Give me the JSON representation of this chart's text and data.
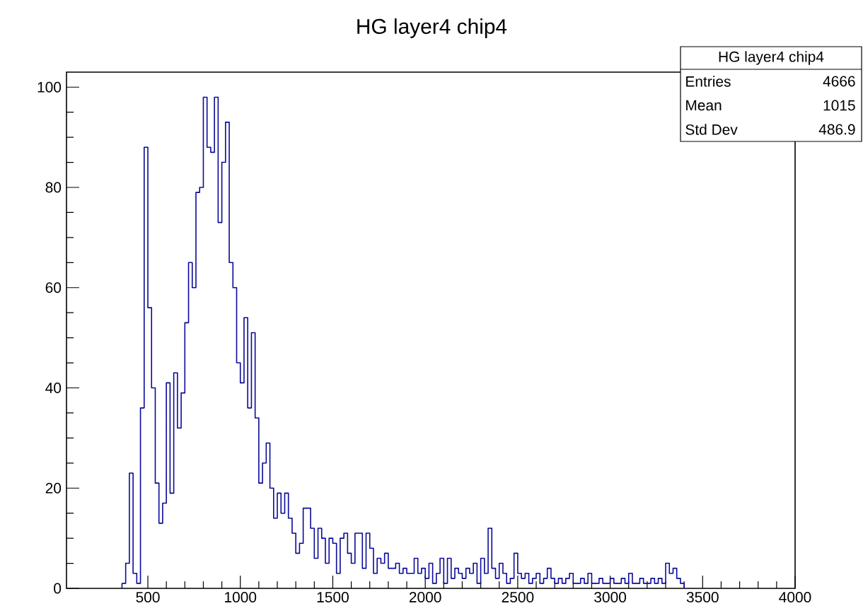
{
  "chart_data": {
    "type": "histogram",
    "title": "HG layer4 chip4",
    "bins": [
      360,
      380,
      400,
      420,
      440,
      460,
      480,
      500,
      520,
      540,
      560,
      580,
      600,
      620,
      640,
      660,
      680,
      700,
      720,
      740,
      760,
      780,
      800,
      820,
      840,
      860,
      880,
      900,
      920,
      940,
      960,
      980,
      1000,
      1020,
      1040,
      1060,
      1080,
      1100,
      1120,
      1140,
      1160,
      1180,
      1200,
      1220,
      1240,
      1260,
      1280,
      1300,
      1320,
      1340,
      1360,
      1380,
      1400,
      1420,
      1440,
      1460,
      1480,
      1500,
      1520,
      1540,
      1560,
      1580,
      1600,
      1620,
      1640,
      1660,
      1680,
      1700,
      1720,
      1740,
      1760,
      1780,
      1800,
      1820,
      1840,
      1860,
      1880,
      1900,
      1920,
      1940,
      1960,
      1980,
      2000,
      2020,
      2040,
      2060,
      2080,
      2100,
      2120,
      2140,
      2160,
      2180,
      2200,
      2220,
      2240,
      2260,
      2280,
      2300,
      2320,
      2340,
      2360,
      2380,
      2400,
      2420,
      2440,
      2460,
      2480,
      2500,
      2520,
      2540,
      2560,
      2580,
      2600,
      2620,
      2640,
      2660,
      2680,
      2700,
      2720,
      2740,
      2760,
      2780,
      2800,
      2820,
      2840,
      2860,
      2880,
      2900,
      2920,
      2940,
      2960,
      2980,
      3000,
      3020,
      3040,
      3060,
      3080,
      3100,
      3120,
      3140,
      3160,
      3180,
      3200,
      3220,
      3240,
      3260,
      3280,
      3300,
      3320,
      3340,
      3360,
      3380,
      3400
    ],
    "values": [
      1,
      5,
      23,
      3,
      1,
      36,
      88,
      56,
      40,
      21,
      13,
      17,
      41,
      19,
      43,
      32,
      39,
      53,
      65,
      60,
      79,
      80,
      98,
      88,
      87,
      98,
      73,
      85,
      93,
      65,
      60,
      45,
      41,
      54,
      36,
      51,
      34,
      21,
      25,
      29,
      20,
      14,
      19,
      15,
      19,
      14,
      11,
      7,
      9,
      16,
      16,
      12,
      6,
      12,
      10,
      5,
      10,
      9,
      3,
      10,
      11,
      7,
      5,
      11,
      11,
      4,
      11,
      8,
      3,
      6,
      5,
      7,
      4,
      4,
      5,
      3,
      4,
      3,
      3,
      6,
      3,
      4,
      2,
      5,
      1,
      3,
      6,
      1,
      6,
      2,
      4,
      3,
      2,
      4,
      3,
      5,
      1,
      6,
      3,
      12,
      4,
      2,
      5,
      3,
      1,
      2,
      7,
      3,
      2,
      3,
      1,
      2,
      3,
      1,
      2,
      4,
      2,
      1,
      2,
      1,
      2,
      3,
      1,
      1,
      2,
      1,
      3,
      1,
      1,
      2,
      1,
      1,
      2,
      1,
      1,
      2,
      1,
      3,
      1,
      1,
      2,
      1,
      1,
      2,
      1,
      2,
      1,
      5,
      3,
      4,
      2,
      1
    ],
    "color": "#0a0a99",
    "xlim": [
      60,
      4000
    ],
    "ylim": [
      0,
      103
    ],
    "xticks": [
      500,
      1000,
      1500,
      2000,
      2500,
      3000,
      3500,
      4000
    ],
    "yticks": [
      0,
      20,
      40,
      60,
      80,
      100
    ],
    "annotations": [
      "HG layer4 chip4",
      "Entries",
      "4666",
      "Mean",
      "1015",
      "Std Dev",
      "486.9"
    ]
  }
}
